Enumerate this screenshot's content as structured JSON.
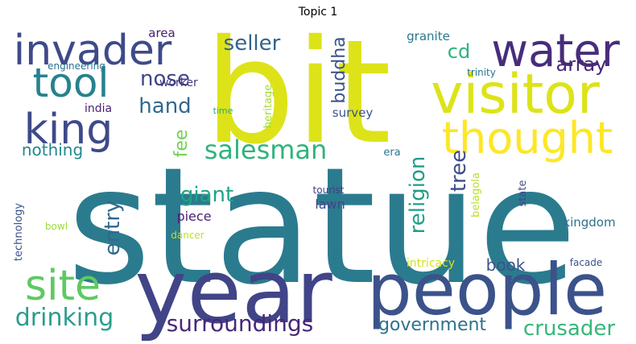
{
  "title": "Topic 1",
  "words": [
    {
      "text": "statue",
      "color": "#2b7b8e"
    },
    {
      "text": "bit",
      "color": "#dde318"
    },
    {
      "text": "year",
      "color": "#414487"
    },
    {
      "text": "people",
      "color": "#3b528b"
    },
    {
      "text": "visitor",
      "color": "#dde318"
    },
    {
      "text": "water",
      "color": "#472d7b"
    },
    {
      "text": "invader",
      "color": "#3e4a89"
    },
    {
      "text": "thought",
      "color": "#fde725"
    },
    {
      "text": "king",
      "color": "#3e4a89"
    },
    {
      "text": "tool",
      "color": "#26828e"
    },
    {
      "text": "site",
      "color": "#5ec962"
    },
    {
      "text": "salesman",
      "color": "#2fb47c"
    },
    {
      "text": "drinking",
      "color": "#2a9d8f"
    },
    {
      "text": "surroundings",
      "color": "#482878"
    },
    {
      "text": "crusader",
      "color": "#35b779"
    },
    {
      "text": "government",
      "color": "#2c728e"
    },
    {
      "text": "seller",
      "color": "#33638d"
    },
    {
      "text": "nose",
      "color": "#3f4788"
    },
    {
      "text": "hand",
      "color": "#31688e"
    },
    {
      "text": "giant",
      "color": "#20a386"
    },
    {
      "text": "entry",
      "color": "#31688e"
    },
    {
      "text": "religion",
      "color": "#1f9e89"
    },
    {
      "text": "tree",
      "color": "#3e4c8a"
    },
    {
      "text": "buddha",
      "color": "#3b528b"
    },
    {
      "text": "array",
      "color": "#482878"
    },
    {
      "text": "cd",
      "color": "#2db27d"
    },
    {
      "text": "nothing",
      "color": "#23888e"
    },
    {
      "text": "book",
      "color": "#3a548c"
    },
    {
      "text": "fee",
      "color": "#73d056"
    },
    {
      "text": "piece",
      "color": "#482173"
    },
    {
      "text": "lawn",
      "color": "#404688"
    },
    {
      "text": "survey",
      "color": "#3b528b"
    },
    {
      "text": "kingdom",
      "color": "#2d708e"
    },
    {
      "text": "granite",
      "color": "#2a788e"
    },
    {
      "text": "india",
      "color": "#481f70"
    },
    {
      "text": "worker",
      "color": "#453781"
    },
    {
      "text": "area",
      "color": "#482071"
    },
    {
      "text": "heritage",
      "color": "#a5db36"
    },
    {
      "text": "belagola",
      "color": "#b8de29"
    },
    {
      "text": "era",
      "color": "#2a768e"
    },
    {
      "text": "state",
      "color": "#3e4989"
    },
    {
      "text": "technology",
      "color": "#3b528b"
    },
    {
      "text": "intricacy",
      "color": "#d2e21b"
    },
    {
      "text": "engineering",
      "color": "#2e6f8e"
    },
    {
      "text": "trinity",
      "color": "#2c738e"
    },
    {
      "text": "time",
      "color": "#25ac82"
    },
    {
      "text": "tourist",
      "color": "#433e85"
    },
    {
      "text": "bowl",
      "color": "#9fda3a"
    },
    {
      "text": "dancer",
      "color": "#c2df23"
    },
    {
      "text": "facade",
      "color": "#3b528b"
    }
  ]
}
